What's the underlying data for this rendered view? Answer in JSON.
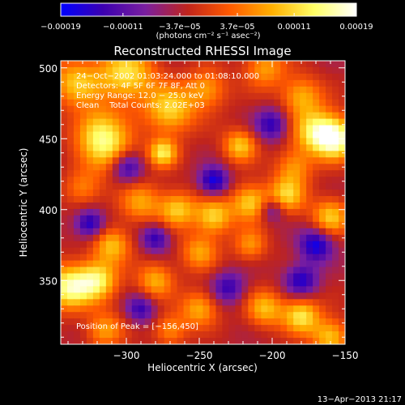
{
  "chart_data": {
    "type": "heatmap",
    "title": "Reconstructed RHESSI Image",
    "xlabel": "Heliocentric X (arcsec)",
    "ylabel": "Heliocentric Y (arcsec)",
    "xlim": [
      -345,
      -150
    ],
    "ylim": [
      305,
      505
    ],
    "x_ticks": [
      -300,
      -250,
      -200,
      -150
    ],
    "x_tick_labels": [
      "−300",
      "−250",
      "−200",
      "−150"
    ],
    "y_ticks": [
      350,
      400,
      450,
      500
    ],
    "y_tick_labels": [
      "350",
      "400",
      "450",
      "500"
    ],
    "grid": false,
    "info_lines": [
      "24−Oct−2002 01:03:24.000 to 01:08:10.000",
      "Detectors: 4F 5F 6F 7F 8F, Att 0",
      "Energy Range: 12.0 − 25.0 keV",
      "Clean    Total Counts: 2.02E+03"
    ],
    "peak_label": "Position of Peak = [−156,450]",
    "peak_position": [
      -156,
      450
    ],
    "colorbar": {
      "tick_values": [
        -0.00019,
        -0.00011,
        -3.7e-05,
        3.7e-05,
        0.00011,
        0.00019
      ],
      "tick_labels": [
        "−0.00019",
        "−0.00011",
        "−3.7e−05",
        "3.7e−05",
        "0.00011",
        "0.00019"
      ],
      "unit_label": "(photons cm⁻² s⁻¹ asec⁻²)",
      "range": [
        -0.00019,
        0.00019
      ],
      "colors": [
        "#0000ff",
        "#3c00b0",
        "#7a1fa0",
        "#c0241c",
        "#ff5a00",
        "#ffb000",
        "#ffff66",
        "#ffffff"
      ]
    },
    "image_peak_value": 0.00019,
    "image_blobs": [
      {
        "x": -335,
        "y": 490,
        "v": 0.65,
        "w": 12
      },
      {
        "x": -300,
        "y": 495,
        "v": 0.8,
        "w": 14
      },
      {
        "x": -270,
        "y": 470,
        "v": 0.75,
        "w": 12
      },
      {
        "x": -245,
        "y": 485,
        "v": 0.55,
        "w": 10
      },
      {
        "x": -205,
        "y": 500,
        "v": 0.55,
        "w": 10
      },
      {
        "x": -180,
        "y": 480,
        "v": 0.6,
        "w": 10
      },
      {
        "x": -170,
        "y": 455,
        "v": 0.8,
        "w": 11
      },
      {
        "x": -156,
        "y": 450,
        "v": 1.0,
        "w": 10
      },
      {
        "x": -320,
        "y": 455,
        "v": 0.7,
        "w": 12
      },
      {
        "x": -310,
        "y": 440,
        "v": 0.6,
        "w": 12
      },
      {
        "x": -275,
        "y": 440,
        "v": 0.8,
        "w": 7
      },
      {
        "x": -222,
        "y": 445,
        "v": 0.7,
        "w": 8
      },
      {
        "x": -185,
        "y": 430,
        "v": 0.5,
        "w": 9
      },
      {
        "x": -330,
        "y": 415,
        "v": 0.45,
        "w": 9
      },
      {
        "x": -290,
        "y": 405,
        "v": 0.55,
        "w": 10
      },
      {
        "x": -265,
        "y": 400,
        "v": 0.7,
        "w": 9
      },
      {
        "x": -240,
        "y": 395,
        "v": 0.75,
        "w": 9
      },
      {
        "x": -215,
        "y": 405,
        "v": 0.75,
        "w": 9
      },
      {
        "x": -190,
        "y": 410,
        "v": 0.7,
        "w": 9
      },
      {
        "x": -160,
        "y": 395,
        "v": 0.7,
        "w": 9
      },
      {
        "x": -310,
        "y": 375,
        "v": 0.65,
        "w": 9
      },
      {
        "x": -250,
        "y": 370,
        "v": 0.55,
        "w": 9
      },
      {
        "x": -215,
        "y": 375,
        "v": 0.5,
        "w": 8
      },
      {
        "x": -340,
        "y": 345,
        "v": 0.95,
        "w": 11
      },
      {
        "x": -320,
        "y": 350,
        "v": 0.85,
        "w": 10
      },
      {
        "x": -280,
        "y": 350,
        "v": 0.6,
        "w": 9
      },
      {
        "x": -250,
        "y": 330,
        "v": 0.6,
        "w": 9
      },
      {
        "x": -205,
        "y": 330,
        "v": 0.65,
        "w": 9
      },
      {
        "x": -180,
        "y": 325,
        "v": 0.8,
        "w": 9
      },
      {
        "x": -160,
        "y": 310,
        "v": 0.7,
        "w": 9
      },
      {
        "x": -315,
        "y": 315,
        "v": 0.55,
        "w": 9
      },
      {
        "x": -270,
        "y": 315,
        "v": 0.5,
        "w": 8
      },
      {
        "x": -300,
        "y": 430,
        "v": -0.7,
        "w": 8
      },
      {
        "x": -240,
        "y": 420,
        "v": -0.75,
        "w": 7
      },
      {
        "x": -200,
        "y": 460,
        "v": -0.6,
        "w": 8
      },
      {
        "x": -325,
        "y": 390,
        "v": -0.7,
        "w": 7
      },
      {
        "x": -170,
        "y": 375,
        "v": -0.75,
        "w": 8
      },
      {
        "x": -280,
        "y": 380,
        "v": -0.6,
        "w": 7
      },
      {
        "x": -230,
        "y": 345,
        "v": -0.55,
        "w": 8
      },
      {
        "x": -180,
        "y": 350,
        "v": -0.65,
        "w": 8
      },
      {
        "x": -200,
        "y": 400,
        "v": -0.5,
        "w": 6
      },
      {
        "x": -290,
        "y": 330,
        "v": -0.55,
        "w": 7
      }
    ]
  },
  "footer": {
    "timestamp": "13−Apr−2013 21:17"
  }
}
